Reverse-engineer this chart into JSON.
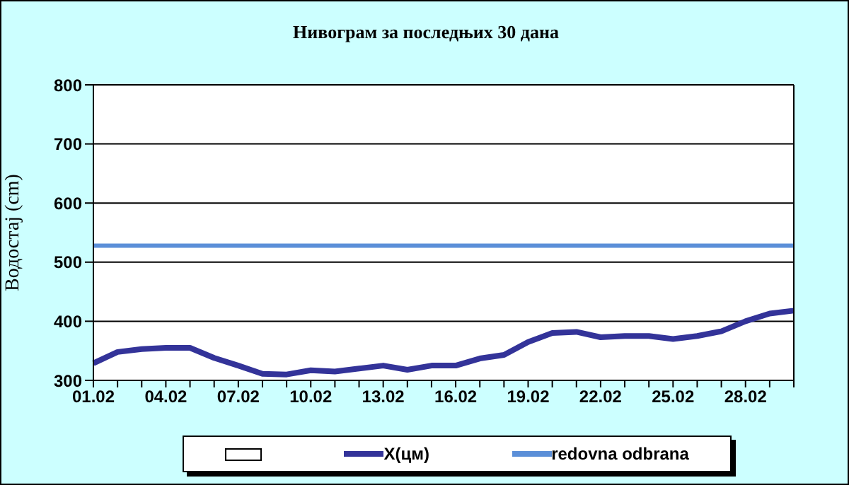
{
  "chart_data": {
    "type": "line",
    "title": "Нивограм за последњих 30 дана",
    "ylabel": "Водостај (cm)",
    "categories": [
      "01.02",
      null,
      null,
      "04.02",
      null,
      null,
      "07.02",
      null,
      null,
      "10.02",
      null,
      null,
      "13.02",
      null,
      null,
      "16.02",
      null,
      null,
      "19.02",
      null,
      null,
      "22.02",
      null,
      null,
      "25.02",
      null,
      null,
      "28.02",
      null,
      null
    ],
    "series": [
      {
        "name": "X(цм)",
        "color": "#333399",
        "values": [
          329,
          348,
          353,
          355,
          355,
          338,
          325,
          311,
          310,
          317,
          315,
          320,
          325,
          318,
          325,
          325,
          337,
          343,
          365,
          380,
          382,
          373,
          375,
          375,
          370,
          375,
          383,
          400,
          413,
          418
        ]
      }
    ],
    "ref_lines": [
      {
        "axis": "y",
        "value": 528,
        "label": "redovna odbrana",
        "color": "#5b8fd8"
      }
    ],
    "ylim": [
      300,
      800
    ],
    "yticks": [
      300,
      400,
      500,
      600,
      700,
      800
    ],
    "grid": "y",
    "legend": "bottom",
    "marker": "none",
    "line_style": "solid"
  }
}
